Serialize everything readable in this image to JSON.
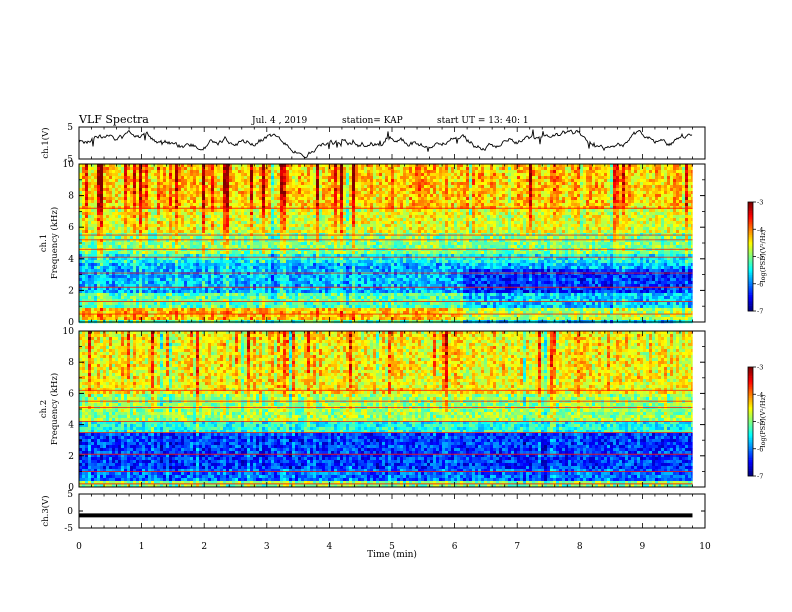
{
  "header": {
    "title": "VLF Spectra",
    "date": "Jul. 4 , 2019",
    "station": "station= KAP",
    "start": "start UT = 13: 40: 1"
  },
  "chart_data": {
    "type": "heatmap",
    "xlabel": "Time (min)",
    "xlim": [
      0,
      10
    ],
    "x_ticks": [
      "0",
      "1",
      "2",
      "3",
      "4",
      "5",
      "6",
      "7",
      "8",
      "9",
      "10"
    ],
    "data_end_min": 9.8,
    "panels": [
      {
        "id": "ch1-voltage",
        "type": "line",
        "ylabel": "ch.1(V)",
        "ylim": [
          -5,
          5
        ],
        "y_ticks": [
          "5",
          "-5"
        ],
        "baseline_v": 0.6,
        "swing_v": 1.7
      },
      {
        "id": "ch1-spectrogram",
        "type": "heatmap",
        "ylabel_line1": "ch.1",
        "ylabel_line2": "Frequency (kHz)",
        "ylim": [
          0,
          10
        ],
        "y_ticks": [
          "0",
          "2",
          "4",
          "6",
          "8",
          "10"
        ],
        "z_range": [
          -7,
          -3
        ],
        "colorbar_label": "log(PSD)(V²/Hz)",
        "colorbar_ticks": [
          "-3",
          "-4",
          "-5",
          "-6",
          "-7"
        ],
        "bands_khz": [
          {
            "from": 0.0,
            "to": 0.2,
            "level": -5.2
          },
          {
            "from": 0.2,
            "to": 0.9,
            "level": -4.3
          },
          {
            "from": 0.9,
            "to": 1.9,
            "level": -5.2
          },
          {
            "from": 1.9,
            "to": 3.8,
            "level": -5.8
          },
          {
            "from": 3.8,
            "to": 4.3,
            "level": -5.5
          },
          {
            "from": 4.3,
            "to": 5.6,
            "level": -5.0
          },
          {
            "from": 5.6,
            "to": 7.2,
            "level": -4.6
          },
          {
            "from": 7.2,
            "to": 10.0,
            "level": -4.3
          }
        ],
        "lines_khz": [
          0.5,
          1.3,
          2.2,
          3.1,
          4.1,
          4.6,
          5.2,
          5.5,
          7.2
        ]
      },
      {
        "id": "ch2-spectrogram",
        "type": "heatmap",
        "ylabel_line1": "ch.2",
        "ylabel_line2": "Frequency (kHz)",
        "ylim": [
          0,
          10
        ],
        "y_ticks": [
          "0",
          "2",
          "4",
          "6",
          "8",
          "10"
        ],
        "z_range": [
          -7,
          -3
        ],
        "colorbar_label": "log(PSD)(V²/Hz)",
        "colorbar_ticks": [
          "-3",
          "-4",
          "-5",
          "-6",
          "-7"
        ],
        "bands_khz": [
          {
            "from": 0.0,
            "to": 0.3,
            "level": -5.0
          },
          {
            "from": 0.3,
            "to": 1.2,
            "level": -6.1
          },
          {
            "from": 1.2,
            "to": 3.4,
            "level": -6.3
          },
          {
            "from": 3.4,
            "to": 4.2,
            "level": -5.4
          },
          {
            "from": 4.2,
            "to": 6.0,
            "level": -4.9
          },
          {
            "from": 6.0,
            "to": 10.0,
            "level": -4.5
          }
        ],
        "lines_khz": [
          0.2,
          1.0,
          2.1,
          3.5,
          4.2,
          5.1,
          5.5,
          6.2
        ]
      },
      {
        "id": "ch3-voltage",
        "type": "line",
        "ylabel": "ch.3(V)",
        "ylim": [
          -5,
          5
        ],
        "y_ticks": [
          "5",
          "0",
          "-5"
        ],
        "baseline_v": -1.3,
        "swing_v": 0
      }
    ]
  }
}
